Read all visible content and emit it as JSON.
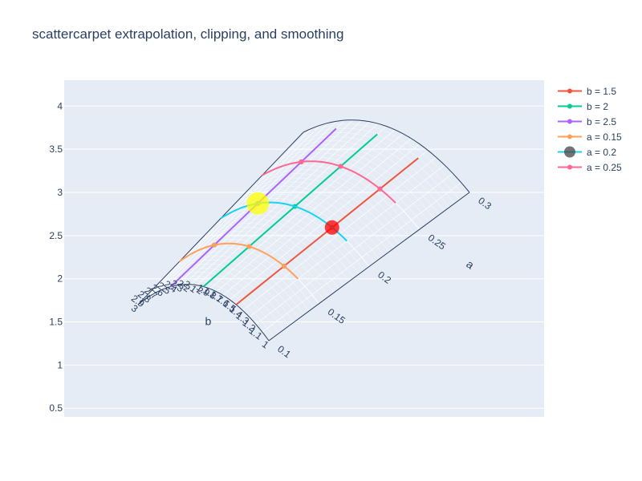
{
  "chart_data": {
    "type": "scatter",
    "title": "scattercarpet extrapolation, clipping, and smoothing",
    "ylim": [
      0.4,
      4.3
    ],
    "y_ticks": [
      "0.5",
      "1",
      "1.5",
      "2",
      "2.5",
      "3",
      "3.5",
      "4"
    ],
    "y_tick_values": [
      0.5,
      1,
      1.5,
      2,
      2.5,
      3,
      3.5,
      4
    ],
    "grid": true,
    "legend_position": "top-right",
    "carpet": {
      "a_title": "a",
      "b_title": "b",
      "a_range": [
        0.1,
        0.3
      ],
      "b_range": [
        1,
        3
      ],
      "a_ticks": [
        "0.1",
        "0.15",
        "0.2",
        "0.25",
        "0.3"
      ],
      "a_tick_values": [
        0.1,
        0.15,
        0.2,
        0.25,
        0.3
      ],
      "b_ticks": [
        "1",
        "1.1",
        "1.2",
        "1.3",
        "1.4",
        "1.5",
        "1.6",
        "1.7",
        "1.8",
        "1.9",
        "2",
        "2.1",
        "2.2",
        "2.3",
        "2.4",
        "2.5",
        "2.6",
        "2.7",
        "2.8",
        "2.9",
        "3"
      ],
      "b_tick_values": [
        1,
        1.1,
        1.2,
        1.3,
        1.4,
        1.5,
        1.6,
        1.7,
        1.8,
        1.9,
        2,
        2.1,
        2.2,
        2.3,
        2.4,
        2.5,
        2.6,
        2.7,
        2.8,
        2.9,
        3
      ]
    },
    "series": [
      {
        "name": "b = 1.5",
        "color": "#EF553B",
        "const": "b",
        "value": 1.5,
        "a_range": [
          0.1,
          0.29
        ],
        "points": [
          {
            "a": 0.15,
            "b": 1.5
          },
          {
            "a": 0.2,
            "b": 1.5
          },
          {
            "a": 0.25,
            "b": 1.5
          }
        ]
      },
      {
        "name": "b = 2",
        "color": "#00CC96",
        "const": "b",
        "value": 2,
        "a_range": [
          0.1,
          0.29
        ],
        "points": [
          {
            "a": 0.15,
            "b": 2
          },
          {
            "a": 0.2,
            "b": 2
          },
          {
            "a": 0.25,
            "b": 2
          }
        ]
      },
      {
        "name": "b = 2.5",
        "color": "#AB63FA",
        "const": "b",
        "value": 2.5,
        "a_range": [
          0.1,
          0.29
        ],
        "points": [
          {
            "a": 0.15,
            "b": 2.5
          },
          {
            "a": 0.2,
            "b": 2.5
          },
          {
            "a": 0.25,
            "b": 2.5
          }
        ]
      },
      {
        "name": "a = 0.15",
        "color": "#FFA15A",
        "const": "a",
        "value": 0.15,
        "b_range": [
          1.3,
          3
        ],
        "points": [
          {
            "a": 0.15,
            "b": 1.5
          },
          {
            "a": 0.15,
            "b": 2
          },
          {
            "a": 0.15,
            "b": 2.5
          }
        ]
      },
      {
        "name": "a = 0.2",
        "color": "#19D3F3",
        "const": "a",
        "value": 0.2,
        "b_range": [
          1.3,
          3
        ],
        "points": [],
        "markers": [
          {
            "a": 0.2,
            "b": 1.5,
            "color": "#FF0000",
            "opacity": 0.75
          },
          {
            "a": 0.2,
            "b": 2.5,
            "color": "#FFFF00",
            "opacity": 0.75
          }
        ],
        "legend_marker_color": "#444444"
      },
      {
        "name": "a = 0.25",
        "color": "#FF6692",
        "const": "a",
        "value": 0.25,
        "b_range": [
          1.3,
          3
        ],
        "points": [
          {
            "a": 0.25,
            "b": 1.5
          },
          {
            "a": 0.25,
            "b": 2
          },
          {
            "a": 0.25,
            "b": 2.5
          }
        ]
      }
    ]
  }
}
